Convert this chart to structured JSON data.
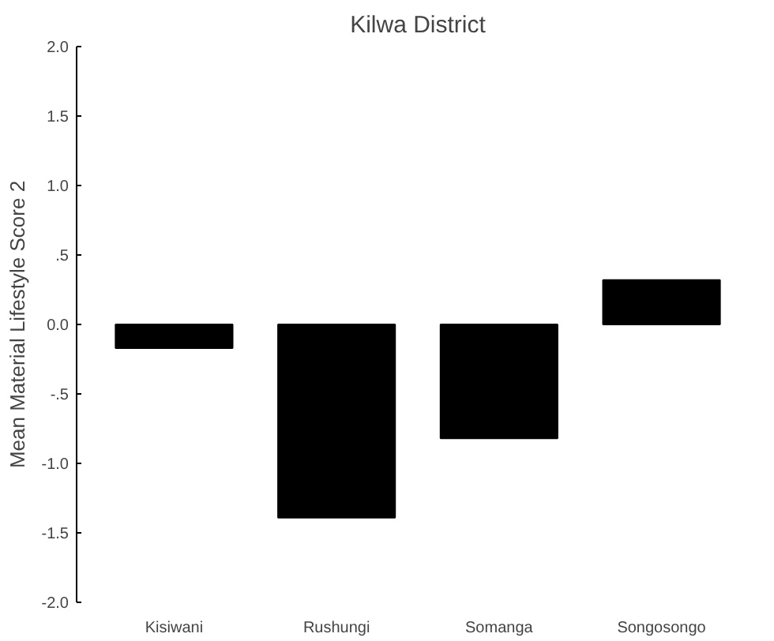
{
  "chart_data": {
    "type": "bar",
    "title": "Kilwa District",
    "ylabel": "Mean Material Lifestyle Score 2",
    "categories": [
      "Kisiwani",
      "Rushungi",
      "Somanga",
      "Songosongo"
    ],
    "values": [
      -0.17,
      -1.39,
      -0.82,
      0.32
    ],
    "color": "#000000",
    "ylim": [
      -2.0,
      2.0
    ],
    "yticks": [
      {
        "value": -2.0,
        "label": "-2.0"
      },
      {
        "value": -1.5,
        "label": "-1.5"
      },
      {
        "value": -1.0,
        "label": "-1.0"
      },
      {
        "value": -0.5,
        "label": "-.5"
      },
      {
        "value": 0.0,
        "label": "0.0"
      },
      {
        "value": 0.5,
        "label": ".5"
      },
      {
        "value": 1.0,
        "label": "1.0"
      },
      {
        "value": 1.5,
        "label": "1.5"
      },
      {
        "value": 2.0,
        "label": "2.0"
      }
    ],
    "grid": false
  }
}
